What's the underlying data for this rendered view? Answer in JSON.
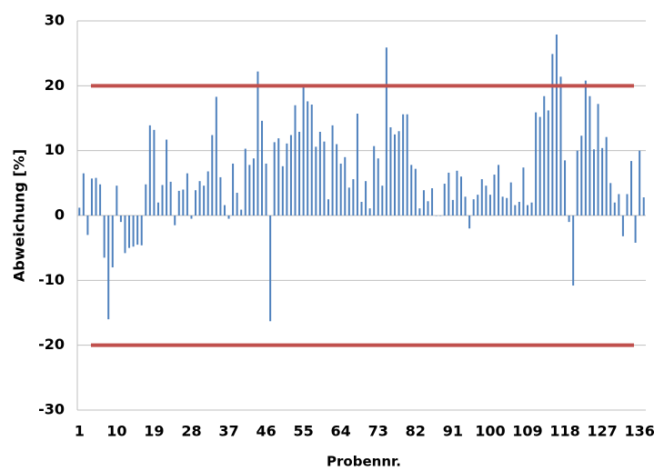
{
  "chart_data": {
    "type": "bar",
    "x_label": "Probennr.",
    "y_label": "Abweichung [%]",
    "categories": [
      "1",
      null,
      null,
      null,
      null,
      null,
      null,
      null,
      null,
      "10",
      null,
      null,
      null,
      null,
      null,
      null,
      null,
      null,
      "19",
      null,
      null,
      null,
      null,
      null,
      null,
      null,
      null,
      "28",
      null,
      null,
      null,
      null,
      null,
      null,
      null,
      null,
      "37",
      null,
      null,
      null,
      null,
      null,
      null,
      null,
      null,
      "46",
      null,
      null,
      null,
      null,
      null,
      null,
      null,
      null,
      "55",
      null,
      null,
      null,
      null,
      null,
      null,
      null,
      null,
      "64",
      null,
      null,
      null,
      null,
      null,
      null,
      null,
      null,
      "73",
      null,
      null,
      null,
      null,
      null,
      null,
      null,
      null,
      "82",
      null,
      null,
      null,
      null,
      null,
      null,
      null,
      null,
      "91",
      null,
      null,
      null,
      null,
      null,
      null,
      null,
      null,
      "100",
      null,
      null,
      null,
      null,
      null,
      null,
      null,
      null,
      "109",
      null,
      null,
      null,
      null,
      null,
      null,
      null,
      null,
      "118",
      null,
      null,
      null,
      null,
      null,
      null,
      null,
      null,
      "127",
      null,
      null,
      null,
      null,
      null,
      null,
      null,
      null,
      "136",
      null
    ],
    "values": [
      1.2,
      6.5,
      -3,
      5.7,
      5.8,
      4.8,
      -6.5,
      -16,
      -8,
      4.6,
      -1,
      -5.8,
      -5,
      -4.8,
      -4.5,
      -4.6,
      4.8,
      13.9,
      13.2,
      2,
      4.7,
      11.7,
      5.2,
      -1.5,
      3.8,
      4,
      6.5,
      -0.5,
      3.9,
      5.3,
      4.6,
      6.8,
      12.4,
      18.3,
      5.9,
      1.6,
      -0.5,
      8,
      3.5,
      0.9,
      10.3,
      7.8,
      8.8,
      22.2,
      14.6,
      8,
      -16.3,
      11.3,
      11.9,
      7.6,
      11.1,
      12.4,
      17,
      12.9,
      20,
      17.6,
      17.1,
      10.6,
      12.9,
      11.4,
      2.5,
      13.9,
      11,
      8,
      9,
      4.3,
      5.6,
      15.7,
      2.1,
      5.3,
      1.1,
      10.7,
      8.8,
      4.6,
      25.9,
      13.6,
      12.5,
      13,
      15.6,
      15.6,
      7.8,
      7.2,
      1.1,
      3.9,
      2.2,
      4.2,
      0,
      0,
      4.9,
      6.6,
      2.4,
      6.9,
      6,
      2.9,
      -2,
      2.5,
      3.2,
      5.6,
      4.6,
      3.2,
      6.3,
      7.8,
      2.9,
      2.7,
      5.1,
      1.6,
      2.1,
      7.4,
      1.6,
      2,
      15.9,
      15.2,
      18.4,
      16.2,
      24.9,
      27.9,
      21.4,
      8.5,
      -1,
      -10.8,
      10,
      12.3,
      20.8,
      18.4,
      10.2,
      17.2,
      10.4,
      12.1,
      5,
      2,
      3.3,
      -3.2,
      3.3,
      8.4,
      -4.2,
      10,
      2.8
    ],
    "color": "#4f81bd",
    "reference_lines": [
      {
        "value": 20,
        "color": "#c0504d"
      },
      {
        "value": -20,
        "color": "#c0504d"
      }
    ],
    "ylim": [
      -30,
      30
    ],
    "yticks": [
      -30,
      -20,
      -10,
      0,
      10,
      20,
      30
    ],
    "grid": true
  }
}
